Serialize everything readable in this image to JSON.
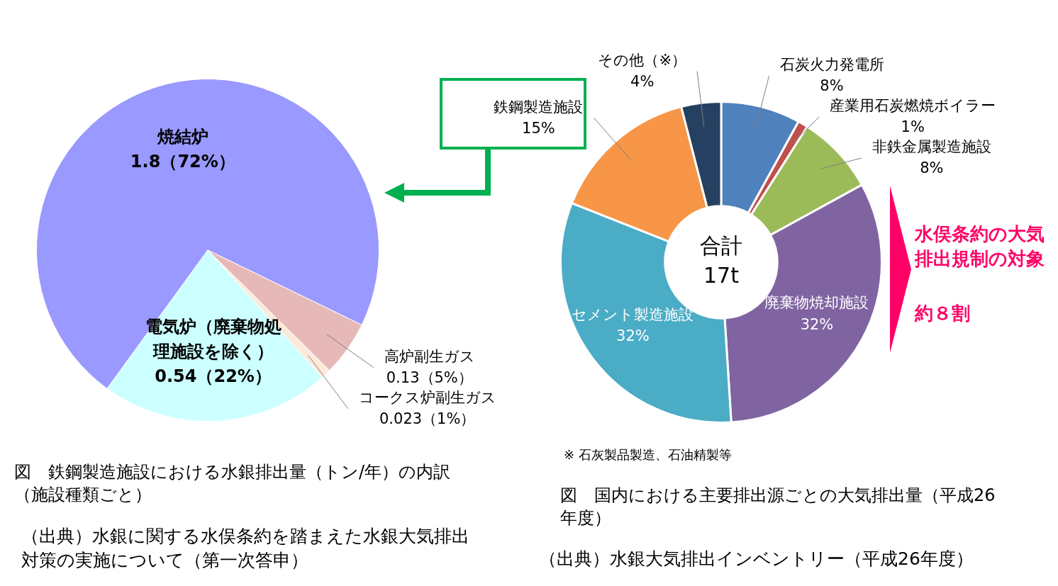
{
  "chart_data": [
    {
      "type": "pie",
      "title": "図　鉄鋼製造施設における水銀排出量（トン/年）の内訳（施設種類ごと）",
      "categories": [
        "焼結炉",
        "高炉副生ガス",
        "コークス炉副生ガス",
        "電気炉（廃棄物処理施設を除く）"
      ],
      "values": [
        1.8,
        0.13,
        0.023,
        0.54
      ],
      "colors": [
        "#9999ff",
        "#e6b9b8",
        "#fde9d9",
        "#ccffff"
      ],
      "value_labels": [
        "1.8（72%）",
        "0.13（5%）",
        "0.023（1%）",
        "0.54（22%）"
      ],
      "annotations": [
        "（出典）水銀に関する水俣条約を踏まえた水銀大気排出対策の実施について（第一次答申）"
      ]
    },
    {
      "type": "donut",
      "title": "図　国内における主要排出源ごとの大気排出量（平成26年度）",
      "categories": [
        "石炭火力発電所",
        "産業用石炭燃焼ボイラー",
        "非鉄金属製造施設",
        "廃棄物焼却施設",
        "セメント製造施設",
        "鉄鋼製造施設",
        "その他（※）"
      ],
      "values": [
        8,
        1,
        8,
        32,
        32,
        15,
        4
      ],
      "colors": [
        "#4f81bd",
        "#c0504d",
        "#9bbb59",
        "#8064a2",
        "#4bacc6",
        "#f79646",
        "#254061"
      ],
      "value_labels": [
        "8%",
        "1%",
        "8%",
        "32%",
        "32%",
        "15%",
        "4%"
      ],
      "annotations": [
        "合計 17t",
        "水俣条約の大気排出規制の対象",
        "約８割",
        "※ 石灰製品製造、石油精製等",
        "（出典）水銀大気排出インベントリー（平成26年度）"
      ]
    }
  ]
}
